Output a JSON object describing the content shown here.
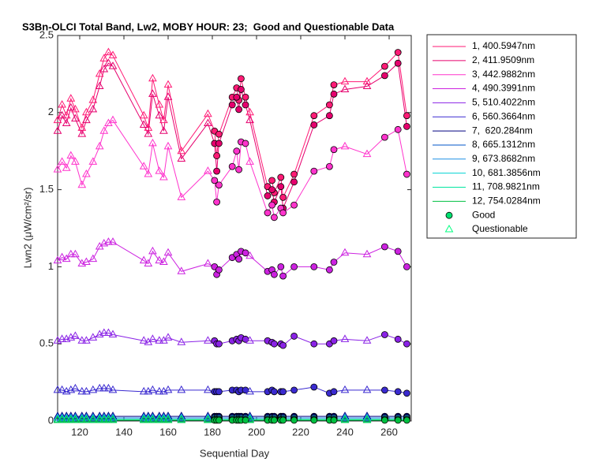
{
  "chart_data": {
    "type": "line",
    "title": "S3Bn-OLCI Total Band, Lw2, MOBY HOUR: 23;  Good and Questionable Data",
    "x_label": "Sequential Day",
    "y_label": "Lwn2 (μW/cm²/sr)",
    "xlim": [
      110,
      270
    ],
    "xticks": [
      120,
      140,
      160,
      180,
      200,
      220,
      240,
      260
    ],
    "ylim": [
      0,
      2.5
    ],
    "yticks": [
      0,
      0.5,
      1,
      1.5,
      2,
      2.5
    ],
    "grid": false,
    "legend": "outside-right",
    "x": [
      110,
      112,
      114,
      116,
      118,
      121,
      123,
      126,
      129,
      131,
      133,
      135,
      149,
      151,
      153,
      156,
      158,
      160,
      166,
      178,
      181,
      182,
      183,
      189,
      191,
      192,
      193,
      195,
      197,
      205,
      207,
      208,
      211,
      212,
      217,
      226,
      233,
      235,
      240,
      250,
      258,
      264,
      268
    ],
    "quality": [
      1,
      1,
      1,
      1,
      1,
      1,
      1,
      1,
      1,
      1,
      1,
      1,
      1,
      1,
      1,
      1,
      1,
      1,
      1,
      1,
      0,
      0,
      0,
      0,
      0,
      0,
      0,
      0,
      1,
      0,
      0,
      0,
      0,
      0,
      0,
      0,
      0,
      0,
      1,
      1,
      0,
      0,
      0
    ],
    "markers": [
      {
        "name": "Good",
        "shape": "circle",
        "color": "#00e070"
      },
      {
        "name": "Questionable",
        "shape": "triangle",
        "color": "#00ff80"
      }
    ],
    "series": [
      {
        "name": "1, 400.5947nm",
        "color": "#ff1a75",
        "values": [
          1.95,
          2.05,
          1.98,
          2.09,
          2.02,
          1.9,
          2.0,
          2.08,
          2.25,
          2.35,
          2.39,
          2.37,
          1.98,
          1.9,
          2.22,
          2.05,
          1.95,
          2.18,
          1.75,
          1.99,
          1.88,
          1.72,
          1.86,
          2.1,
          2.16,
          2.08,
          2.22,
          2.1,
          2.0,
          1.52,
          1.56,
          1.48,
          1.58,
          1.45,
          1.6,
          1.98,
          2.05,
          2.18,
          2.2,
          2.2,
          2.3,
          2.39,
          1.98
        ]
      },
      {
        "name": "2, 411.9509nm",
        "color": "#e6006e",
        "values": [
          1.88,
          1.98,
          1.93,
          2.03,
          1.96,
          1.86,
          1.95,
          2.02,
          2.17,
          2.28,
          2.32,
          2.3,
          1.92,
          1.86,
          2.12,
          1.98,
          1.88,
          2.1,
          1.7,
          1.93,
          1.8,
          1.62,
          1.8,
          2.05,
          2.1,
          2.02,
          2.15,
          2.05,
          1.95,
          1.46,
          1.5,
          1.42,
          1.52,
          1.38,
          1.55,
          1.92,
          1.98,
          2.12,
          2.15,
          2.17,
          2.24,
          2.32,
          1.91
        ]
      },
      {
        "name": "3, 442.9882nm",
        "color": "#ff33cc",
        "values": [
          1.63,
          1.68,
          1.64,
          1.72,
          1.68,
          1.53,
          1.6,
          1.68,
          1.78,
          1.88,
          1.93,
          1.95,
          1.65,
          1.6,
          1.8,
          1.62,
          1.58,
          1.78,
          1.45,
          1.62,
          1.56,
          1.42,
          1.53,
          1.65,
          1.75,
          1.63,
          1.81,
          1.8,
          1.68,
          1.35,
          1.4,
          1.32,
          1.38,
          1.35,
          1.4,
          1.62,
          1.65,
          1.76,
          1.78,
          1.73,
          1.84,
          1.89,
          1.6
        ]
      },
      {
        "name": "4, 490.3991nm",
        "color": "#cc22e0",
        "values": [
          1.04,
          1.06,
          1.05,
          1.08,
          1.08,
          1.02,
          1.03,
          1.05,
          1.13,
          1.15,
          1.16,
          1.16,
          1.04,
          1.02,
          1.1,
          1.04,
          1.03,
          1.09,
          0.97,
          1.02,
          1.0,
          0.95,
          0.98,
          1.06,
          1.08,
          1.05,
          1.1,
          1.09,
          1.07,
          0.97,
          0.98,
          0.95,
          1.0,
          0.94,
          1.0,
          1.0,
          0.98,
          1.03,
          1.09,
          1.08,
          1.13,
          1.1,
          1.0
        ]
      },
      {
        "name": "5, 510.4022nm",
        "color": "#8a22e6",
        "values": [
          0.52,
          0.53,
          0.53,
          0.54,
          0.55,
          0.52,
          0.52,
          0.54,
          0.56,
          0.57,
          0.57,
          0.56,
          0.52,
          0.51,
          0.53,
          0.52,
          0.52,
          0.54,
          0.51,
          0.52,
          0.52,
          0.5,
          0.5,
          0.52,
          0.53,
          0.52,
          0.54,
          0.53,
          0.52,
          0.52,
          0.51,
          0.5,
          0.5,
          0.49,
          0.55,
          0.5,
          0.5,
          0.52,
          0.53,
          0.52,
          0.56,
          0.53,
          0.5
        ]
      },
      {
        "name": "6, 560.3664nm",
        "color": "#3a2ad0",
        "values": [
          0.2,
          0.2,
          0.19,
          0.2,
          0.21,
          0.19,
          0.19,
          0.2,
          0.21,
          0.21,
          0.21,
          0.2,
          0.19,
          0.19,
          0.2,
          0.19,
          0.19,
          0.2,
          0.2,
          0.2,
          0.19,
          0.19,
          0.19,
          0.2,
          0.2,
          0.19,
          0.2,
          0.2,
          0.19,
          0.19,
          0.2,
          0.19,
          0.19,
          0.19,
          0.2,
          0.22,
          0.18,
          0.19,
          0.2,
          0.2,
          0.2,
          0.19,
          0.18
        ]
      },
      {
        "name": "7,  620.284nm",
        "color": "#000080",
        "values": [
          0.03,
          0.03,
          0.03,
          0.03,
          0.03,
          0.03,
          0.03,
          0.03,
          0.03,
          0.03,
          0.03,
          0.03,
          0.03,
          0.03,
          0.03,
          0.03,
          0.03,
          0.03,
          0.03,
          0.03,
          0.03,
          0.03,
          0.03,
          0.03,
          0.03,
          0.03,
          0.03,
          0.03,
          0.03,
          0.03,
          0.03,
          0.03,
          0.03,
          0.03,
          0.03,
          0.03,
          0.03,
          0.03,
          0.03,
          0.03,
          0.03,
          0.03,
          0.03
        ]
      },
      {
        "name": "8, 665.1312nm",
        "color": "#0055c8",
        "values": [
          0.02,
          0.02,
          0.02,
          0.02,
          0.02,
          0.02,
          0.02,
          0.02,
          0.02,
          0.02,
          0.02,
          0.02,
          0.02,
          0.02,
          0.02,
          0.02,
          0.02,
          0.02,
          0.02,
          0.02,
          0.02,
          0.02,
          0.02,
          0.02,
          0.02,
          0.02,
          0.02,
          0.02,
          0.02,
          0.02,
          0.02,
          0.02,
          0.02,
          0.02,
          0.02,
          0.02,
          0.02,
          0.02,
          0.02,
          0.02,
          0.02,
          0.02,
          0.02
        ]
      },
      {
        "name": "9, 673.8682nm",
        "color": "#1e90e6",
        "values": [
          0.02,
          0.02,
          0.02,
          0.02,
          0.02,
          0.02,
          0.02,
          0.02,
          0.02,
          0.02,
          0.02,
          0.02,
          0.02,
          0.02,
          0.02,
          0.02,
          0.02,
          0.02,
          0.02,
          0.02,
          0.02,
          0.02,
          0.02,
          0.02,
          0.02,
          0.02,
          0.02,
          0.02,
          0.02,
          0.02,
          0.02,
          0.02,
          0.02,
          0.02,
          0.02,
          0.02,
          0.02,
          0.02,
          0.02,
          0.02,
          0.02,
          0.02,
          0.02
        ]
      },
      {
        "name": "10, 681.3856nm",
        "color": "#00d2d2",
        "values": [
          0.01,
          0.01,
          0.01,
          0.01,
          0.01,
          0.01,
          0.01,
          0.01,
          0.01,
          0.01,
          0.01,
          0.01,
          0.01,
          0.01,
          0.01,
          0.01,
          0.01,
          0.01,
          0.01,
          0.01,
          0.01,
          0.01,
          0.01,
          0.01,
          0.01,
          0.01,
          0.01,
          0.01,
          0.01,
          0.01,
          0.01,
          0.01,
          0.01,
          0.01,
          0.01,
          0.01,
          0.01,
          0.01,
          0.01,
          0.01,
          0.01,
          0.01,
          0.01
        ]
      },
      {
        "name": "11, 708.9821nm",
        "color": "#00e6a0",
        "values": [
          0.01,
          0.01,
          0.01,
          0.01,
          0.01,
          0.01,
          0.01,
          0.01,
          0.01,
          0.01,
          0.01,
          0.01,
          0.01,
          0.01,
          0.01,
          0.01,
          0.01,
          0.01,
          0.01,
          0.01,
          0.01,
          0.01,
          0.01,
          0.01,
          0.01,
          0.01,
          0.01,
          0.01,
          0.01,
          0.01,
          0.01,
          0.01,
          0.01,
          0.01,
          0.01,
          0.01,
          0.01,
          0.01,
          0.01,
          0.01,
          0.01,
          0.01,
          0.01
        ]
      },
      {
        "name": "12, 754.0284nm",
        "color": "#00c040",
        "values": [
          0.005,
          0.005,
          0.005,
          0.005,
          0.005,
          0.005,
          0.005,
          0.005,
          0.005,
          0.005,
          0.005,
          0.005,
          0.005,
          0.005,
          0.005,
          0.005,
          0.005,
          0.005,
          0.005,
          0.005,
          0.005,
          0.005,
          0.005,
          0.005,
          0.005,
          0.005,
          0.005,
          0.005,
          0.005,
          0.005,
          0.005,
          0.005,
          0.005,
          0.005,
          0.005,
          0.005,
          0.005,
          0.005,
          0.005,
          0.005,
          0.005,
          0.005,
          0.005
        ]
      }
    ]
  }
}
